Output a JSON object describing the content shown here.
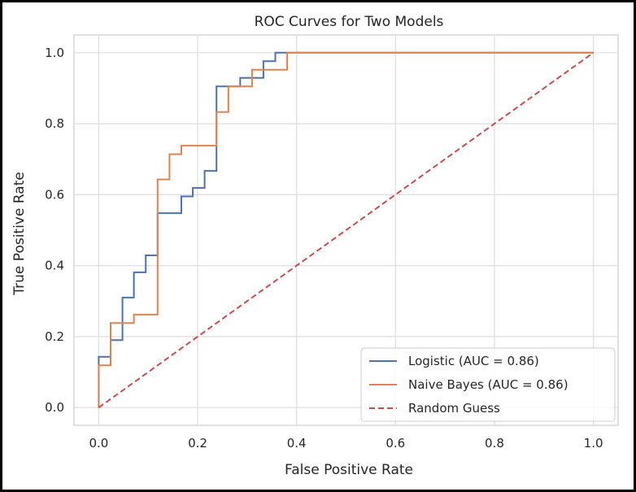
{
  "chart_data": {
    "type": "line",
    "title": "ROC Curves for Two Models",
    "xlabel": "False Positive Rate",
    "ylabel": "True Positive Rate",
    "xlim": [
      -0.05,
      1.05
    ],
    "ylim": [
      -0.05,
      1.05
    ],
    "xticks": [
      "0.0",
      "0.2",
      "0.4",
      "0.6",
      "0.8",
      "1.0"
    ],
    "yticks": [
      "0.0",
      "0.2",
      "0.4",
      "0.6",
      "0.8",
      "1.0"
    ],
    "grid": true,
    "legend_position": "lower-right",
    "series": [
      {
        "name": "Logistic (AUC = 0.86)",
        "color": "#4c72b0",
        "style": "solid",
        "step": true,
        "x": [
          0.0,
          0.0,
          0.024,
          0.024,
          0.048,
          0.048,
          0.071,
          0.071,
          0.095,
          0.095,
          0.119,
          0.119,
          0.167,
          0.167,
          0.19,
          0.19,
          0.214,
          0.214,
          0.238,
          0.238,
          0.286,
          0.286,
          0.31,
          0.31,
          0.333,
          0.333,
          0.357,
          0.357,
          0.381,
          0.381,
          1.0
        ],
        "y": [
          0.0,
          0.143,
          0.143,
          0.19,
          0.19,
          0.31,
          0.31,
          0.381,
          0.381,
          0.429,
          0.429,
          0.548,
          0.548,
          0.595,
          0.595,
          0.619,
          0.619,
          0.667,
          0.667,
          0.905,
          0.905,
          0.929,
          0.929,
          0.929,
          0.929,
          0.976,
          0.976,
          1.0,
          1.0,
          1.0,
          1.0
        ]
      },
      {
        "name": "Naive Bayes (AUC = 0.86)",
        "color": "#dd8452",
        "style": "solid",
        "step": true,
        "x": [
          0.0,
          0.0,
          0.024,
          0.024,
          0.071,
          0.071,
          0.119,
          0.119,
          0.143,
          0.143,
          0.167,
          0.167,
          0.238,
          0.238,
          0.262,
          0.262,
          0.31,
          0.31,
          0.381,
          0.381,
          1.0
        ],
        "y": [
          0.0,
          0.119,
          0.119,
          0.238,
          0.238,
          0.262,
          0.262,
          0.643,
          0.643,
          0.714,
          0.714,
          0.738,
          0.738,
          0.833,
          0.833,
          0.905,
          0.905,
          0.952,
          0.952,
          1.0,
          1.0
        ]
      },
      {
        "name": "Random Guess",
        "color": "#c44e52",
        "style": "dashed",
        "step": false,
        "x": [
          0.0,
          1.0
        ],
        "y": [
          0.0,
          1.0
        ]
      }
    ]
  }
}
